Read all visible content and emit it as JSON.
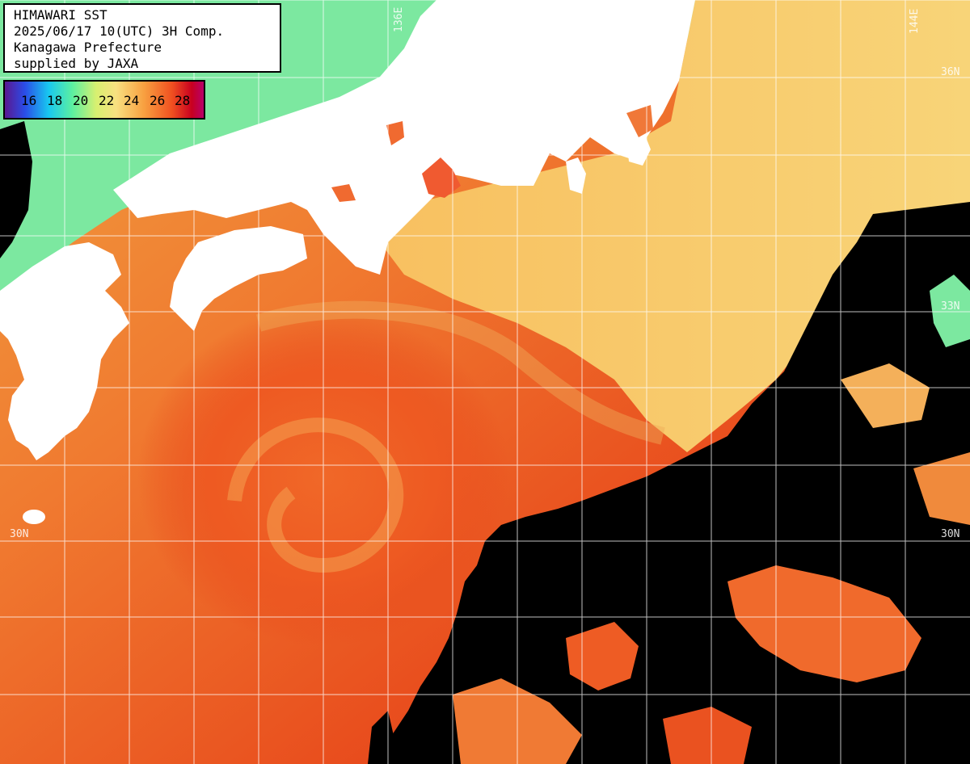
{
  "header": {
    "lines": [
      "HIMAWARI SST",
      "2025/06/17 10(UTC) 3H Comp.",
      "Kanagawa Prefecture",
      "supplied by JAXA"
    ]
  },
  "legend": {
    "ticks": [
      "16",
      "18",
      "20",
      "22",
      "24",
      "26",
      "28"
    ]
  },
  "grid_labels": {
    "lon_136": "136E",
    "lon_144": "144E",
    "lat_36": "36N",
    "lat_33": "33N",
    "lat_30_left": "30N",
    "lat_30_right": "30N"
  },
  "colors": {
    "land": "#ffffff",
    "cloud_mask": "#000000",
    "sst_cold": "#5cf0a0",
    "sst_mild": "#f8d070",
    "sst_warm": "#f89040",
    "sst_hot": "#e83c18",
    "grid": "#ffffff"
  }
}
